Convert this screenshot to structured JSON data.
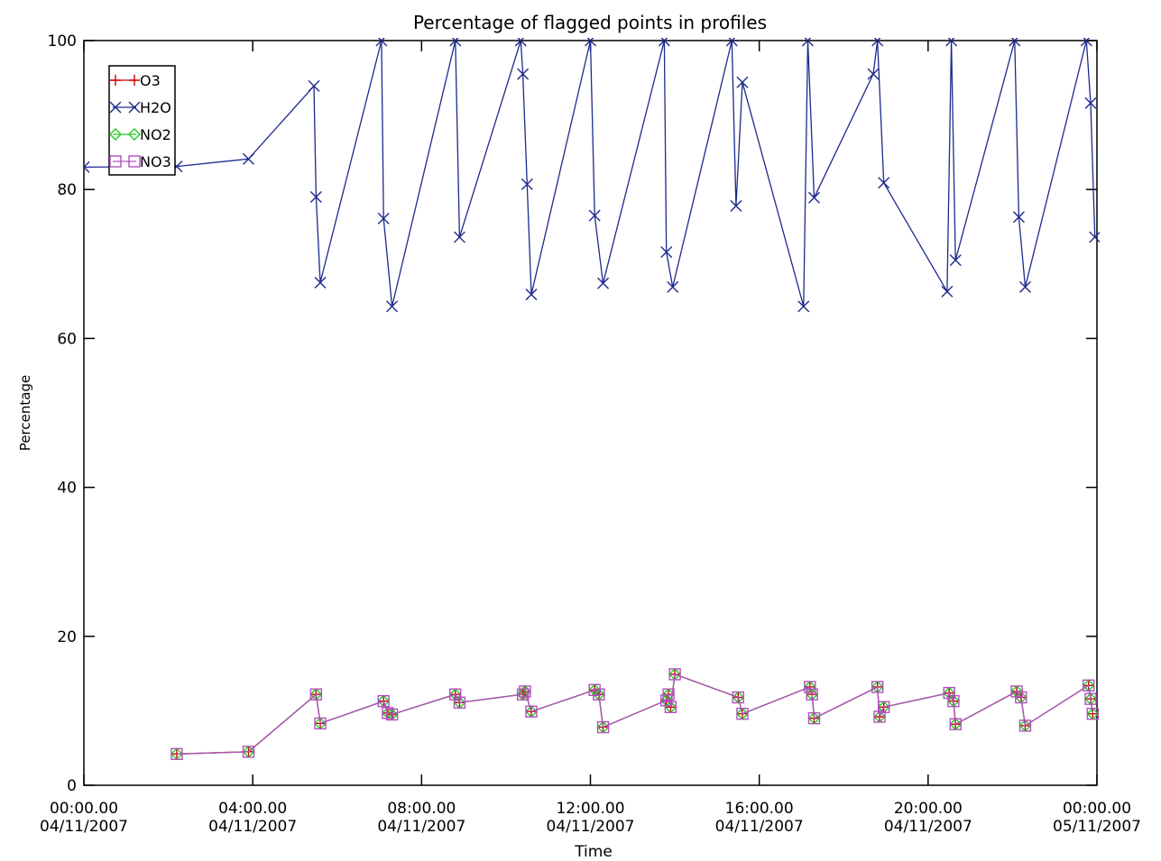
{
  "chart_data": {
    "type": "line",
    "title": "Percentage of flagged points in profiles",
    "xlabel": "Time",
    "ylabel": "Percentage",
    "xlim_hours": [
      0,
      24
    ],
    "ylim": [
      0,
      100
    ],
    "x_ticks": [
      {
        "h": 0,
        "time": "00:00.00",
        "date": "04/11/2007"
      },
      {
        "h": 4,
        "time": "04:00.00",
        "date": "04/11/2007"
      },
      {
        "h": 8,
        "time": "08:00.00",
        "date": "04/11/2007"
      },
      {
        "h": 12,
        "time": "12:00.00",
        "date": "04/11/2007"
      },
      {
        "h": 16,
        "time": "16:00.00",
        "date": "04/11/2007"
      },
      {
        "h": 20,
        "time": "20:00.00",
        "date": "04/11/2007"
      },
      {
        "h": 24,
        "time": "00:00.00",
        "date": "05/11/2007"
      }
    ],
    "y_ticks": [
      "0",
      "20",
      "40",
      "60",
      "80",
      "100"
    ],
    "legend_position": "top-left",
    "series": [
      {
        "name": "O3",
        "color": "#cc0000",
        "marker": "plus",
        "x": [
          2.2,
          3.9,
          5.5,
          5.6,
          7.1,
          7.2,
          7.3,
          8.8,
          8.9,
          10.4,
          10.45,
          10.6,
          12.1,
          12.2,
          12.3,
          13.8,
          13.85,
          13.9,
          14.0,
          15.5,
          15.6,
          17.2,
          17.25,
          17.3,
          18.8,
          18.85,
          18.95,
          20.5,
          20.6,
          20.65,
          22.1,
          22.2,
          22.3,
          23.8,
          23.85,
          23.9
        ],
        "y": [
          4.2,
          4.5,
          12.2,
          8.3,
          11.3,
          9.7,
          9.5,
          12.2,
          11.1,
          12.2,
          12.6,
          9.9,
          12.8,
          12.2,
          7.8,
          11.4,
          12.2,
          10.5,
          14.9,
          11.8,
          9.6,
          13.2,
          12.2,
          9.0,
          13.2,
          9.2,
          10.5,
          12.4,
          11.3,
          8.2,
          12.6,
          11.8,
          8.0,
          13.4,
          11.6,
          9.6
        ]
      },
      {
        "name": "H2O",
        "color": "#1c2a8c",
        "marker": "x",
        "x": [
          0.0,
          2.2,
          3.9,
          5.45,
          5.5,
          5.6,
          7.05,
          7.1,
          7.3,
          8.8,
          8.9,
          10.35,
          10.4,
          10.5,
          10.6,
          12.0,
          12.1,
          12.3,
          13.75,
          13.8,
          13.95,
          15.35,
          15.45,
          15.6,
          17.05,
          17.15,
          17.3,
          18.7,
          18.8,
          18.95,
          20.45,
          20.55,
          20.65,
          22.05,
          22.15,
          22.3,
          23.75,
          23.85,
          23.95
        ],
        "y": [
          83.0,
          83.1,
          84.1,
          93.9,
          79.0,
          67.5,
          100,
          76.1,
          64.3,
          100,
          73.6,
          100,
          95.5,
          80.7,
          65.9,
          100,
          76.5,
          67.4,
          100,
          71.6,
          66.9,
          100,
          77.8,
          94.4,
          64.3,
          100,
          78.9,
          95.5,
          100,
          80.9,
          66.3,
          100,
          70.5,
          100,
          76.3,
          66.9,
          100,
          91.6,
          73.6
        ]
      },
      {
        "name": "NO2",
        "color": "#22cc22",
        "marker": "diamond",
        "x": [
          2.2,
          3.9,
          5.5,
          5.6,
          7.1,
          7.2,
          7.3,
          8.8,
          8.9,
          10.4,
          10.45,
          10.6,
          12.1,
          12.2,
          12.3,
          13.8,
          13.85,
          13.9,
          14.0,
          15.5,
          15.6,
          17.2,
          17.25,
          17.3,
          18.8,
          18.85,
          18.95,
          20.5,
          20.6,
          20.65,
          22.1,
          22.2,
          22.3,
          23.8,
          23.85,
          23.9
        ],
        "y": [
          4.2,
          4.5,
          12.2,
          8.3,
          11.3,
          9.7,
          9.5,
          12.2,
          11.1,
          12.2,
          12.6,
          9.9,
          12.8,
          12.2,
          7.8,
          11.4,
          12.2,
          10.5,
          14.9,
          11.8,
          9.6,
          13.2,
          12.2,
          9.0,
          13.2,
          9.2,
          10.5,
          12.4,
          11.3,
          8.2,
          12.6,
          11.8,
          8.0,
          13.4,
          11.6,
          9.6
        ]
      },
      {
        "name": "NO3",
        "color": "#b24fc0",
        "marker": "square",
        "x": [
          2.2,
          3.9,
          5.5,
          5.6,
          7.1,
          7.2,
          7.3,
          8.8,
          8.9,
          10.4,
          10.45,
          10.6,
          12.1,
          12.2,
          12.3,
          13.8,
          13.85,
          13.9,
          14.0,
          15.5,
          15.6,
          17.2,
          17.25,
          17.3,
          18.8,
          18.85,
          18.95,
          20.5,
          20.6,
          20.65,
          22.1,
          22.2,
          22.3,
          23.8,
          23.85,
          23.9
        ],
        "y": [
          4.2,
          4.5,
          12.2,
          8.3,
          11.3,
          9.7,
          9.5,
          12.2,
          11.1,
          12.2,
          12.6,
          9.9,
          12.8,
          12.2,
          7.8,
          11.4,
          12.2,
          10.5,
          14.9,
          11.8,
          9.6,
          13.2,
          12.2,
          9.0,
          13.2,
          9.2,
          10.5,
          12.4,
          11.3,
          8.2,
          12.6,
          11.8,
          8.0,
          13.4,
          11.6,
          9.6
        ]
      }
    ]
  }
}
